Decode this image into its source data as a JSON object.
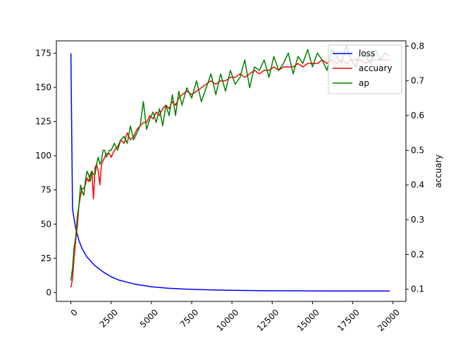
{
  "chart_data": {
    "type": "line",
    "title": "",
    "xlabel": "",
    "ylabel_left": "",
    "ylabel_right": "accuary",
    "xlim": [
      -900,
      20800
    ],
    "ylim_left": [
      -6.5,
      184
    ],
    "ylim_right": [
      0.065,
      0.815
    ],
    "x_ticks": [
      0,
      2500,
      5000,
      7500,
      10000,
      12500,
      15000,
      17500,
      20000
    ],
    "y_left_ticks": [
      0,
      25,
      50,
      75,
      100,
      125,
      150,
      175
    ],
    "y_right_ticks": [
      0.1,
      0.2,
      0.3,
      0.4,
      0.5,
      0.6,
      0.7,
      0.8
    ],
    "x_tick_rotation": 45,
    "legend_position": "top-right",
    "grid": false,
    "series": [
      {
        "name": "loss",
        "axis": "left",
        "color": "#0000ff",
        "x": [
          0,
          100,
          300,
          500,
          700,
          1000,
          1500,
          2000,
          2500,
          3000,
          3500,
          4000,
          5000,
          6000,
          7000,
          8000,
          9000,
          10000,
          12000,
          14000,
          16000,
          18000,
          19800
        ],
        "values": [
          175,
          61,
          47,
          38,
          32,
          26,
          19.5,
          15,
          11.5,
          9,
          7.5,
          6,
          4.2,
          3.2,
          2.5,
          2.1,
          1.8,
          1.6,
          1.3,
          1.2,
          1.1,
          1.1,
          1.1
        ]
      },
      {
        "name": "accuary",
        "axis": "right",
        "color": "#ff0000",
        "x": [
          0,
          100,
          200,
          300,
          400,
          500,
          600,
          700,
          800,
          900,
          1000,
          1100,
          1200,
          1300,
          1400,
          1500,
          1600,
          1700,
          1800,
          1900,
          2000,
          2100,
          2200,
          2300,
          2400,
          2500,
          2700,
          2900,
          3100,
          3300,
          3500,
          3700,
          3900,
          4100,
          4300,
          4500,
          4700,
          4900,
          5100,
          5300,
          5500,
          5700,
          5900,
          6100,
          6300,
          6500,
          6700,
          6900,
          7200,
          7500,
          7800,
          8100,
          8400,
          8700,
          9000,
          9300,
          9600,
          9900,
          10200,
          10500,
          10800,
          11100,
          11400,
          11700,
          12000,
          12300,
          12600,
          12900,
          13200,
          13500,
          13800,
          14100,
          14400,
          14700,
          15000,
          15300,
          15600,
          15900,
          16200,
          16500,
          16800,
          17100,
          17400,
          17700,
          18000,
          18300,
          18600,
          18900,
          19200,
          19500,
          19800
        ],
        "values": [
          0.105,
          0.13,
          0.19,
          0.24,
          0.28,
          0.34,
          0.37,
          0.39,
          0.39,
          0.4,
          0.42,
          0.41,
          0.43,
          0.44,
          0.36,
          0.45,
          0.46,
          0.44,
          0.4,
          0.46,
          0.47,
          0.48,
          0.49,
          0.49,
          0.49,
          0.48,
          0.5,
          0.51,
          0.53,
          0.52,
          0.55,
          0.53,
          0.54,
          0.56,
          0.57,
          0.58,
          0.58,
          0.6,
          0.59,
          0.61,
          0.6,
          0.62,
          0.63,
          0.62,
          0.64,
          0.63,
          0.65,
          0.66,
          0.67,
          0.66,
          0.67,
          0.68,
          0.69,
          0.7,
          0.69,
          0.7,
          0.7,
          0.71,
          0.71,
          0.72,
          0.71,
          0.72,
          0.73,
          0.72,
          0.73,
          0.73,
          0.74,
          0.73,
          0.74,
          0.74,
          0.74,
          0.75,
          0.74,
          0.75,
          0.75,
          0.75,
          0.76,
          0.75,
          0.76,
          0.75,
          0.76,
          0.75,
          0.76,
          0.76,
          0.76,
          0.75,
          0.76,
          0.76,
          0.76,
          0.76,
          0.76
        ]
      },
      {
        "name": "ap",
        "axis": "right",
        "color": "#008000",
        "x": [
          0,
          100,
          200,
          300,
          400,
          500,
          600,
          700,
          800,
          900,
          1000,
          1100,
          1200,
          1300,
          1400,
          1500,
          1600,
          1700,
          1800,
          1900,
          2000,
          2100,
          2200,
          2300,
          2400,
          2500,
          2700,
          2900,
          3100,
          3300,
          3500,
          3700,
          3900,
          4100,
          4300,
          4500,
          4700,
          4900,
          5100,
          5300,
          5500,
          5700,
          5900,
          6100,
          6300,
          6500,
          6700,
          6900,
          7200,
          7500,
          7800,
          8100,
          8400,
          8700,
          9000,
          9300,
          9600,
          9900,
          10200,
          10500,
          10800,
          11100,
          11400,
          11700,
          12000,
          12300,
          12600,
          12900,
          13200,
          13500,
          13800,
          14100,
          14400,
          14700,
          15000,
          15300,
          15600,
          15900,
          16200,
          16500,
          16800,
          17100,
          17400,
          17700,
          18000,
          18300,
          18600,
          18900,
          19200,
          19500,
          19800
        ],
        "values": [
          0.125,
          0.16,
          0.22,
          0.25,
          0.31,
          0.34,
          0.4,
          0.38,
          0.37,
          0.41,
          0.44,
          0.43,
          0.41,
          0.44,
          0.43,
          0.43,
          0.46,
          0.48,
          0.46,
          0.47,
          0.5,
          0.5,
          0.48,
          0.49,
          0.5,
          0.5,
          0.52,
          0.5,
          0.53,
          0.54,
          0.52,
          0.57,
          0.53,
          0.55,
          0.57,
          0.64,
          0.56,
          0.59,
          0.61,
          0.58,
          0.62,
          0.57,
          0.63,
          0.6,
          0.66,
          0.6,
          0.67,
          0.63,
          0.68,
          0.65,
          0.7,
          0.64,
          0.68,
          0.72,
          0.66,
          0.72,
          0.67,
          0.73,
          0.69,
          0.71,
          0.76,
          0.68,
          0.74,
          0.73,
          0.76,
          0.71,
          0.77,
          0.73,
          0.75,
          0.78,
          0.72,
          0.77,
          0.75,
          0.79,
          0.74,
          0.78,
          0.76,
          0.73,
          0.79,
          0.77,
          0.75,
          0.8,
          0.76,
          0.74,
          0.79,
          0.77,
          0.75,
          0.79,
          0.76,
          0.78,
          0.77
        ]
      }
    ]
  }
}
